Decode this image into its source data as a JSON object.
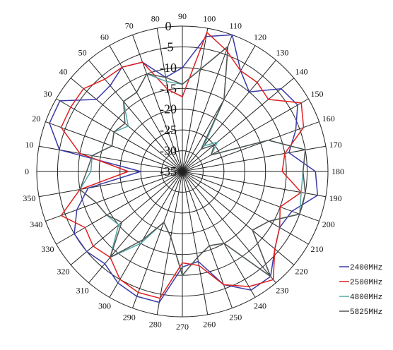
{
  "chart_data": {
    "type": "polar-line",
    "angle_labels": [
      "0",
      "10",
      "20",
      "30",
      "40",
      "50",
      "60",
      "70",
      "80",
      "90",
      "100",
      "110",
      "120",
      "130",
      "140",
      "150",
      "160",
      "170",
      "180",
      "190",
      "200",
      "210",
      "220",
      "230",
      "240",
      "250",
      "260",
      "270",
      "280",
      "290",
      "300",
      "310",
      "320",
      "330",
      "340",
      "350"
    ],
    "radial_labels": [
      "0",
      "-5",
      "-10",
      "-15",
      "-20",
      "-25",
      "-30",
      "-35"
    ],
    "rlim": [
      -35,
      0
    ],
    "grid": true,
    "legend_position": "bottom-right",
    "series": [
      {
        "name": "2400MHz",
        "color": "#3a3aa8",
        "values": [
          -25,
          -5,
          -1,
          -1,
          -8,
          -8,
          -6,
          -7,
          -12,
          -10,
          -2,
          0,
          -7,
          -10,
          -4,
          -3,
          -6,
          -9,
          -3,
          -2,
          -7,
          -8,
          -6,
          -2,
          -2,
          -6,
          -13,
          -12,
          -3,
          -3,
          -4,
          -6,
          -5,
          -5,
          -8,
          -12
        ]
      },
      {
        "name": "2500MHz",
        "color": "#e02020",
        "values": [
          -22,
          -10,
          -4,
          -4,
          -4,
          -6,
          -6,
          -7,
          -15,
          -17,
          -1,
          -4,
          -7,
          -7,
          -8,
          -2,
          -4,
          -10,
          -11,
          -6,
          -10,
          -8,
          -6,
          -1,
          -3,
          -6,
          -12,
          -13,
          -4,
          -4,
          -5,
          -8,
          -7,
          -8,
          -4,
          -10
        ]
      },
      {
        "name": "4800MHz",
        "color": "#56a8a8",
        "values": [
          -13,
          -13,
          -17,
          -16,
          -18,
          -13,
          -13,
          -10,
          -13,
          -14,
          -10,
          -3,
          -15,
          -27,
          -24,
          -27,
          -13,
          -5,
          -6,
          -6,
          -5,
          -11,
          -13,
          -2,
          -15,
          -16,
          -14,
          -10,
          -19,
          -22,
          -15,
          -8,
          -15,
          -14,
          -13,
          -10
        ]
      },
      {
        "name": "5825MHz",
        "color": "#555555",
        "values": [
          -12,
          -13,
          -17,
          -16,
          -17,
          -13,
          -13,
          -10,
          -12,
          -14,
          -10,
          -3,
          -15,
          -28,
          -25,
          -27,
          -13,
          -5,
          -6,
          -5,
          -5,
          -11,
          -13,
          -2,
          -15,
          -16,
          -14,
          -10,
          -19,
          -22,
          -16,
          -8,
          -16,
          -14,
          -13,
          -10
        ]
      }
    ]
  }
}
